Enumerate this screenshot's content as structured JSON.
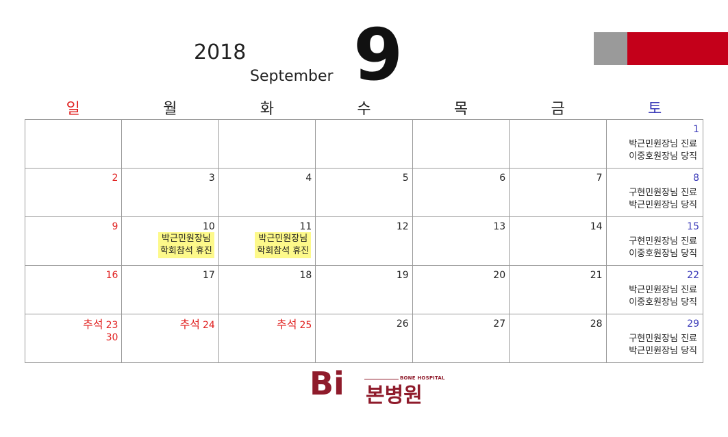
{
  "header": {
    "year": "2018",
    "month_name": "September",
    "month_number": "9",
    "accent_colors": {
      "gray": "#9a9a9a",
      "red": "#c4001a"
    }
  },
  "colors": {
    "sunday": "#e0201f",
    "saturday": "#3a3ab8",
    "weekday": "#222222",
    "highlight": "#fdf98a",
    "logo": "#8f1b2b"
  },
  "weekdays": [
    "일",
    "월",
    "화",
    "수",
    "목",
    "금",
    "토"
  ],
  "weeks": [
    [
      {
        "day": ""
      },
      {
        "day": ""
      },
      {
        "day": ""
      },
      {
        "day": ""
      },
      {
        "day": ""
      },
      {
        "day": ""
      },
      {
        "day": "1",
        "notes": [
          "박근민원장님 진료",
          "이중호원장님 당직"
        ]
      }
    ],
    [
      {
        "day": "2"
      },
      {
        "day": "3"
      },
      {
        "day": "4"
      },
      {
        "day": "5"
      },
      {
        "day": "6"
      },
      {
        "day": "7"
      },
      {
        "day": "8",
        "notes": [
          "구현민원장님 진료",
          "박근민원장님 당직"
        ]
      }
    ],
    [
      {
        "day": "9"
      },
      {
        "day": "10",
        "highlight": [
          "박근민원장님",
          "학회참석 휴진"
        ]
      },
      {
        "day": "11",
        "highlight": [
          "박근민원장님",
          "학회참석 휴진"
        ]
      },
      {
        "day": "12"
      },
      {
        "day": "13"
      },
      {
        "day": "14"
      },
      {
        "day": "15",
        "notes": [
          "구현민원장님 진료",
          "이중호원장님 당직"
        ]
      }
    ],
    [
      {
        "day": "16"
      },
      {
        "day": "17"
      },
      {
        "day": "18"
      },
      {
        "day": "19"
      },
      {
        "day": "20"
      },
      {
        "day": "21"
      },
      {
        "day": "22",
        "notes": [
          "박근민원장님 진료",
          "이중호원장님 당직"
        ]
      }
    ],
    [
      {
        "day": "23",
        "day2": "30",
        "holiday": "추석"
      },
      {
        "day": "24",
        "holiday": "추석"
      },
      {
        "day": "25",
        "holiday": "추석"
      },
      {
        "day": "26"
      },
      {
        "day": "27"
      },
      {
        "day": "28"
      },
      {
        "day": "29",
        "notes": [
          "구현민원장님 진료",
          "박근민원장님 당직"
        ]
      }
    ]
  ],
  "logo": {
    "mark": "Bi",
    "english": "BONE HOSPITAL",
    "korean": "본병원"
  }
}
